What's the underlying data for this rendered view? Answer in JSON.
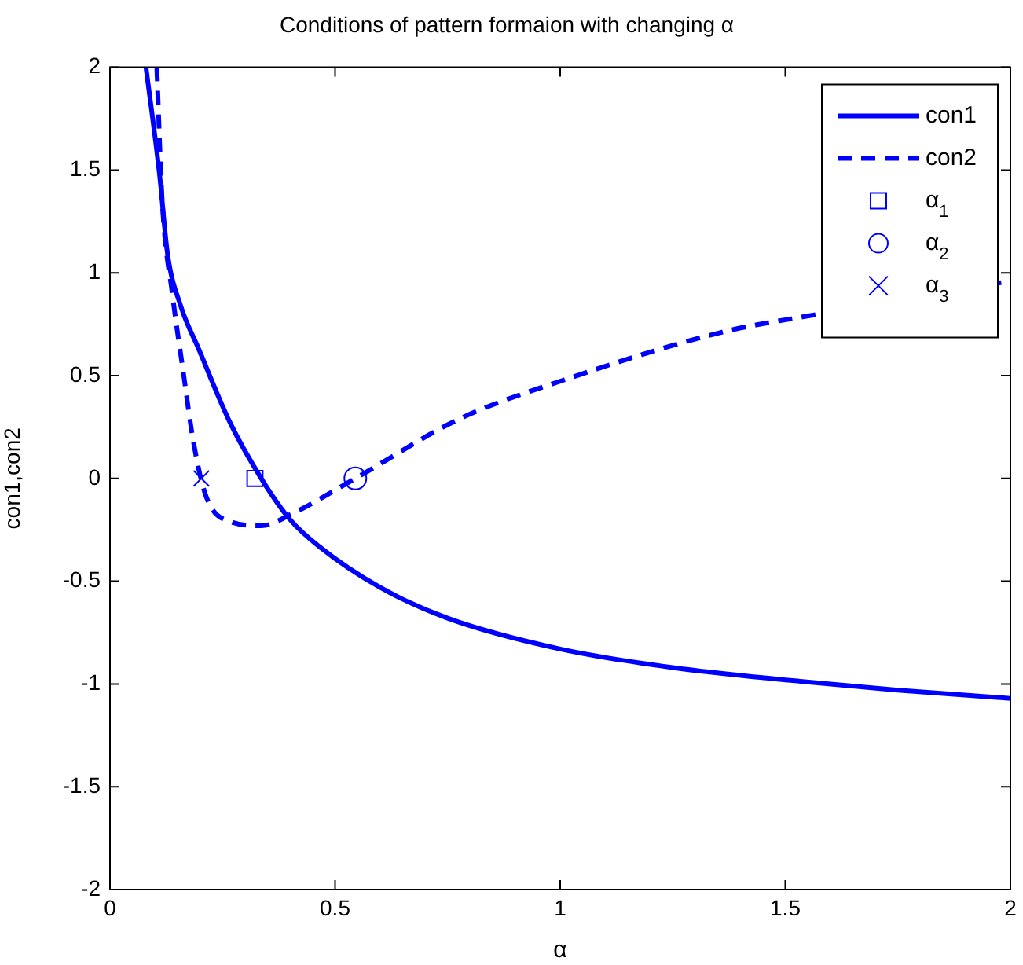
{
  "chart_data": {
    "type": "line",
    "title": "Conditions of pattern formaion with changing α",
    "xlabel": "α",
    "ylabel": "con1,con2",
    "xlim": [
      0,
      2
    ],
    "xticks": [
      0,
      0.5,
      1,
      1.5,
      2
    ],
    "ylim": [
      -2,
      2
    ],
    "yticks": [
      -2,
      -1.5,
      -1,
      -0.5,
      0,
      0.5,
      1,
      1.5,
      2
    ],
    "grid": false,
    "legend": "top right",
    "series": [
      {
        "name": "con1",
        "color": "#0000ff",
        "line_style": "solid",
        "marker": "none",
        "x": [
          0.08,
          0.11,
          0.128,
          0.157,
          0.197,
          0.267,
          0.336,
          0.4,
          0.464,
          0.6,
          0.75,
          1,
          1.25,
          1.5,
          1.75,
          2
        ],
        "values": [
          2.0,
          1.48,
          1.09,
          0.84,
          0.63,
          0.27,
          0,
          -0.2,
          -0.33,
          -0.53,
          -0.68,
          -0.83,
          -0.92,
          -0.98,
          -1.03,
          -1.07
        ]
      },
      {
        "name": "con2",
        "color": "#0000ff",
        "line_style": "dashed",
        "marker": "none",
        "x": [
          0.104,
          0.116,
          0.139,
          0.162,
          0.186,
          0.214,
          0.267,
          0.336,
          0.406,
          0.545,
          0.777,
          1.01,
          1.357,
          1.576,
          2
        ],
        "values": [
          2.0,
          1.35,
          0.89,
          0.53,
          0.17,
          -0.09,
          -0.21,
          -0.23,
          -0.17,
          0,
          0.29,
          0.48,
          0.71,
          0.8,
          0.96
        ]
      },
      {
        "name": "α$_{1}$",
        "type": "scatter",
        "color": "#0000ff",
        "marker": "square",
        "x": [
          0.322
        ],
        "values": [
          0
        ]
      },
      {
        "name": "α$_{2}$",
        "type": "scatter",
        "color": "#0000ff",
        "marker": "circle",
        "x": [
          0.545
        ],
        "values": [
          0
        ]
      },
      {
        "name": "α$_{3}$",
        "type": "scatter",
        "color": "#0000ff",
        "marker": "cross",
        "x": [
          0.203
        ],
        "values": [
          0
        ]
      }
    ]
  }
}
